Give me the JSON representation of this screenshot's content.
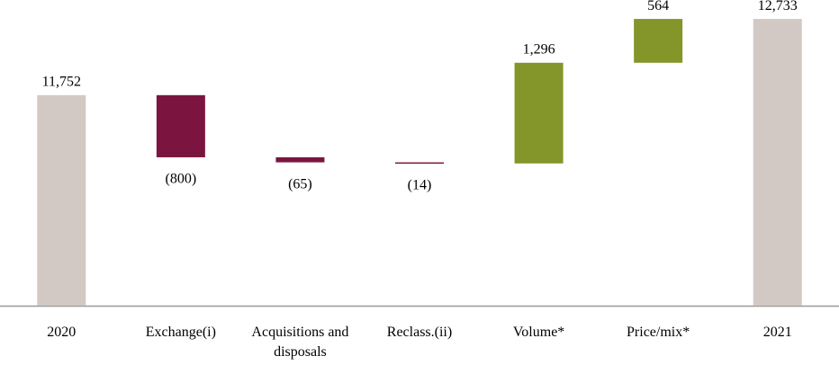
{
  "chart_data": {
    "type": "waterfall",
    "categories": [
      "2020",
      "Exchange(i)",
      "Acquisitions and disposals",
      "Reclass.(ii)",
      "Volume*",
      "Price/mix*",
      "2021"
    ],
    "values": [
      11752,
      -800,
      -65,
      -14,
      1296,
      564,
      12733
    ],
    "value_labels": [
      "11,752",
      "(800)",
      "(65)",
      "(14)",
      "1,296",
      "564",
      "12,733"
    ],
    "is_total": [
      true,
      false,
      false,
      false,
      false,
      false,
      true
    ],
    "total_color": "#d3c9c4",
    "decrease_color": "#7b1540",
    "increase_color": "#84962a",
    "ylim": [
      9042,
      13000
    ]
  }
}
